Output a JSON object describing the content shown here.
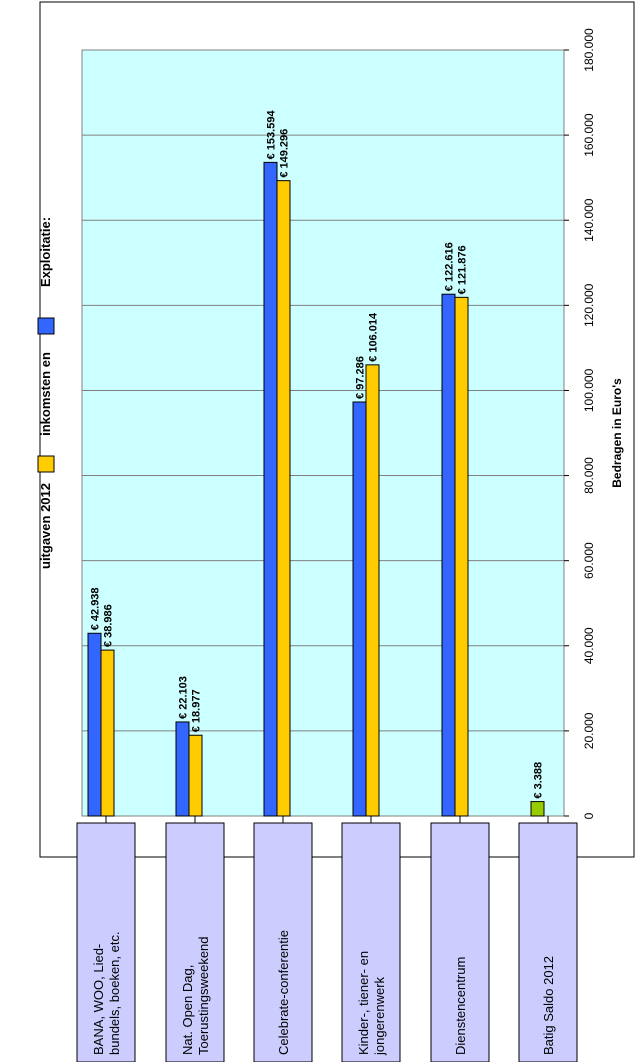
{
  "chart_data": {
    "type": "bar",
    "orientation": "horizontal",
    "title_prefix": "Exploitatie:",
    "categories": [
      [
        "BANA, WOO, Lied-",
        "bundels, boeken, etc."
      ],
      [
        "Nat. Open Dag,",
        "Toerustingsweekend"
      ],
      [
        "Celebrate-conferentie"
      ],
      [
        "Kinder-, tiener- en",
        "jongerenwerk"
      ],
      [
        "Dienstencentrum"
      ],
      [
        "Batig Saldo 2012"
      ]
    ],
    "series": [
      {
        "name": "inkomsten en",
        "color": "#3366FF",
        "values": [
          42938,
          22103,
          153594,
          97286,
          122616,
          null
        ],
        "labels": [
          "€ 42.938",
          "€ 22.103",
          "€ 153.594",
          "€ 97.286",
          "€ 122.616",
          ""
        ]
      },
      {
        "name": "uitgaven 2012",
        "color": "#FFCC00",
        "values": [
          38986,
          18977,
          149296,
          106014,
          121876,
          null
        ],
        "labels": [
          "€ 38.986",
          "€ 18.977",
          "€ 149.296",
          "€ 106.014",
          "€ 121.876",
          ""
        ]
      },
      {
        "name": "",
        "color": "#99CC00",
        "values": [
          null,
          null,
          null,
          null,
          null,
          3388
        ],
        "labels": [
          "",
          "",
          "",
          "",
          "",
          "€ 3.388"
        ]
      }
    ],
    "xlabel": "Bedragen in Euro's",
    "ticks": [
      0,
      20000,
      40000,
      60000,
      80000,
      100000,
      120000,
      140000,
      160000,
      180000
    ],
    "tick_labels": [
      "0",
      "20.000",
      "40.000",
      "60.000",
      "80.000",
      "100.000",
      "120.000",
      "140.000",
      "160.000",
      "180.000"
    ],
    "xlim": [
      0,
      180000
    ],
    "grid": true,
    "plot_background": "#CCFFFF"
  }
}
